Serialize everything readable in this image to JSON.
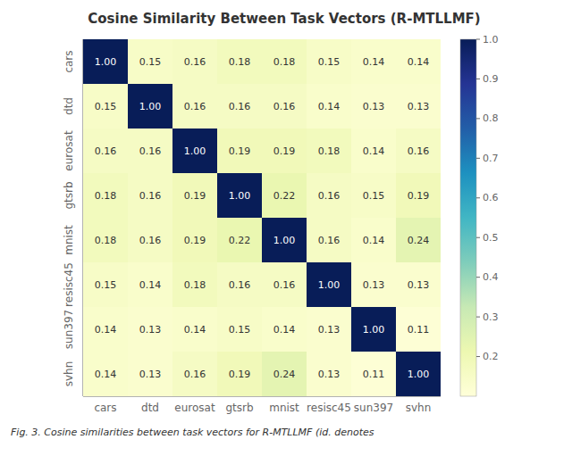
{
  "chart_data": {
    "type": "heatmap",
    "title": "Cosine Similarity Between Task Vectors (R-MTLLMF)",
    "annotation": "Fig. 3. Cosine similarities between task vectors for R-MTLLMF (id. denotes",
    "categories": [
      "cars",
      "dtd",
      "eurosat",
      "gtsrb",
      "mnist",
      "resisc45",
      "sun397",
      "svhn"
    ],
    "values": [
      [
        1.0,
        0.15,
        0.16,
        0.18,
        0.18,
        0.15,
        0.14,
        0.14
      ],
      [
        0.15,
        1.0,
        0.16,
        0.16,
        0.16,
        0.14,
        0.13,
        0.13
      ],
      [
        0.16,
        0.16,
        1.0,
        0.19,
        0.19,
        0.18,
        0.14,
        0.16
      ],
      [
        0.18,
        0.16,
        0.19,
        1.0,
        0.22,
        0.16,
        0.15,
        0.19
      ],
      [
        0.18,
        0.16,
        0.19,
        0.22,
        1.0,
        0.16,
        0.14,
        0.24
      ],
      [
        0.15,
        0.14,
        0.18,
        0.16,
        0.16,
        1.0,
        0.13,
        0.13
      ],
      [
        0.14,
        0.13,
        0.14,
        0.15,
        0.14,
        0.13,
        1.0,
        0.11
      ],
      [
        0.14,
        0.13,
        0.16,
        0.19,
        0.24,
        0.13,
        0.11,
        1.0
      ]
    ],
    "value_labels": [
      [
        "1.00",
        "0.15",
        "0.16",
        "0.18",
        "0.18",
        "0.15",
        "0.14",
        "0.14"
      ],
      [
        "0.15",
        "1.00",
        "0.16",
        "0.16",
        "0.16",
        "0.14",
        "0.13",
        "0.13"
      ],
      [
        "0.16",
        "0.16",
        "1.00",
        "0.19",
        "0.19",
        "0.18",
        "0.14",
        "0.16"
      ],
      [
        "0.18",
        "0.16",
        "0.19",
        "1.00",
        "0.22",
        "0.16",
        "0.15",
        "0.19"
      ],
      [
        "0.18",
        "0.16",
        "0.19",
        "0.22",
        "1.00",
        "0.16",
        "0.14",
        "0.24"
      ],
      [
        "0.15",
        "0.14",
        "0.18",
        "0.16",
        "0.16",
        "1.00",
        "0.13",
        "0.13"
      ],
      [
        "0.14",
        "0.13",
        "0.14",
        "0.15",
        "0.14",
        "0.13",
        "1.00",
        "0.11"
      ],
      [
        "0.14",
        "0.13",
        "0.16",
        "0.19",
        "0.24",
        "0.13",
        "0.11",
        "1.00"
      ]
    ],
    "data_labels": true,
    "color": "YlGnBu",
    "colorbar": {
      "range": [
        0.1,
        1.0
      ],
      "ticks": [
        0.2,
        0.3,
        0.4,
        0.5,
        0.6,
        0.7,
        0.8,
        0.9,
        {
          "value": 1.0,
          "label": "1.0"
        }
      ]
    }
  }
}
